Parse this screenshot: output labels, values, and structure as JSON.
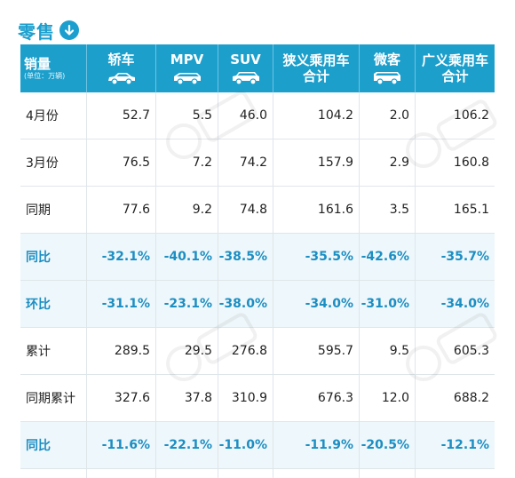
{
  "title": "零售",
  "header": {
    "col0_main": "销量",
    "col0_unit": "(单位：万辆)",
    "cols": [
      {
        "line1": "轿车",
        "line2": "",
        "icon": "sedan-icon"
      },
      {
        "line1": "MPV",
        "line2": "",
        "icon": "mpv-icon"
      },
      {
        "line1": "SUV",
        "line2": "",
        "icon": "suv-icon"
      },
      {
        "line1": "狭义乘用车",
        "line2": "合计",
        "icon": ""
      },
      {
        "line1": "微客",
        "line2": "",
        "icon": "microvan-icon"
      },
      {
        "line1": "广义乘用车",
        "line2": "合计",
        "icon": ""
      }
    ]
  },
  "rows": [
    {
      "label": "4月份",
      "values": [
        "52.7",
        "5.5",
        "46.0",
        "104.2",
        "2.0",
        "106.2"
      ],
      "highlight": false
    },
    {
      "label": "3月份",
      "values": [
        "76.5",
        "7.2",
        "74.2",
        "157.9",
        "2.9",
        "160.8"
      ],
      "highlight": false
    },
    {
      "label": "同期",
      "values": [
        "77.6",
        "9.2",
        "74.8",
        "161.6",
        "3.5",
        "165.1"
      ],
      "highlight": false
    },
    {
      "label": "同比",
      "values": [
        "-32.1%",
        "-40.1%",
        "-38.5%",
        "-35.5%",
        "-42.6%",
        "-35.7%"
      ],
      "highlight": true
    },
    {
      "label": "环比",
      "values": [
        "-31.1%",
        "-23.1%",
        "-38.0%",
        "-34.0%",
        "-31.0%",
        "-34.0%"
      ],
      "highlight": true
    },
    {
      "label": "累计",
      "values": [
        "289.5",
        "29.5",
        "276.8",
        "595.7",
        "9.5",
        "605.3"
      ],
      "highlight": false
    },
    {
      "label": "同期累计",
      "values": [
        "327.6",
        "37.8",
        "310.9",
        "676.3",
        "12.0",
        "688.2"
      ],
      "highlight": false
    },
    {
      "label": "同比",
      "values": [
        "-11.6%",
        "-22.1%",
        "-11.0%",
        "-11.9%",
        "-20.5%",
        "-12.1%"
      ],
      "highlight": true
    }
  ],
  "colors": {
    "accent": "#1c9fce",
    "header_bg": "#1d9fcc",
    "highlight_text": "#1c8ec2",
    "highlight_bg": "#eef7fb"
  }
}
